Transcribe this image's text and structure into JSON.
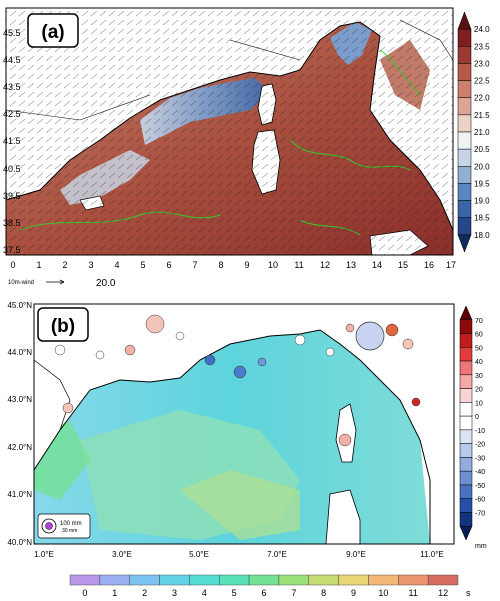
{
  "panel_a": {
    "label": "(a)",
    "x_ticks": [
      "0",
      "1",
      "2",
      "3",
      "4",
      "5",
      "6",
      "7",
      "8",
      "9",
      "10",
      "11",
      "12",
      "13",
      "14",
      "15",
      "16",
      "17"
    ],
    "y_ticks": [
      "45.5",
      "44.5",
      "43.5",
      "42.5",
      "41.5",
      "40.5",
      "39.5",
      "38.5",
      "37.5"
    ],
    "colorbar": {
      "labels": [
        "24.0",
        "23.5",
        "23.0",
        "22.5",
        "22.0",
        "21.5",
        "21.0",
        "20.5",
        "20.0",
        "19.5",
        "19.0",
        "18.5",
        "18.0"
      ],
      "colors": [
        "#5a0f18",
        "#7f1f22",
        "#9a3a33",
        "#b65a4a",
        "#cd7f6d",
        "#dda595",
        "#ecd2c8",
        "#f3f2f2",
        "#c7d4e4",
        "#8fb0d3",
        "#5b87bf",
        "#3a66a8",
        "#24478a",
        "#102a5e"
      ]
    },
    "vector_legend": {
      "label": "10m-wind",
      "value": "20.0"
    }
  },
  "panel_b": {
    "label": "(b)",
    "x_ticks": [
      "1.0°E",
      "3.0°E",
      "5.0°E",
      "7.0°E",
      "9.0°E",
      "11.0°E"
    ],
    "y_ticks": [
      "45.0°N",
      "44.0°N",
      "43.0°N",
      "42.0°N",
      "41.0°N",
      "40.0°N"
    ],
    "right_colorbar": {
      "labels": [
        "70",
        "60",
        "50",
        "40",
        "30",
        "20",
        "10",
        "0",
        "-10",
        "-20",
        "-30",
        "-40",
        "-50",
        "-60",
        "-70"
      ],
      "unit": "mm",
      "colors": [
        "#5a0000",
        "#8e0a0a",
        "#c01d1d",
        "#e23c3c",
        "#ef7676",
        "#f5a7a7",
        "#fad4d4",
        "#ffffff",
        "#ffffff",
        "#dbe4f3",
        "#b7c9ea",
        "#93acdf",
        "#6e8fd1",
        "#4a71c2",
        "#2650a8",
        "#11347f",
        "#061d52"
      ]
    },
    "bubble_legend": {
      "large": "100 mm",
      "small": "30 mm"
    },
    "bottom_colorbar": {
      "labels": [
        "0",
        "1",
        "2",
        "3",
        "4",
        "5",
        "6",
        "7",
        "8",
        "9",
        "10",
        "11",
        "12"
      ],
      "unit": "s",
      "colors": [
        "#b996e8",
        "#9aaff0",
        "#7ac3f0",
        "#62d3e6",
        "#52dcd2",
        "#58e0b6",
        "#74e294",
        "#9ce07a",
        "#c6dd74",
        "#e8d576",
        "#f2b878",
        "#eb9470",
        "#d46d60"
      ]
    }
  }
}
